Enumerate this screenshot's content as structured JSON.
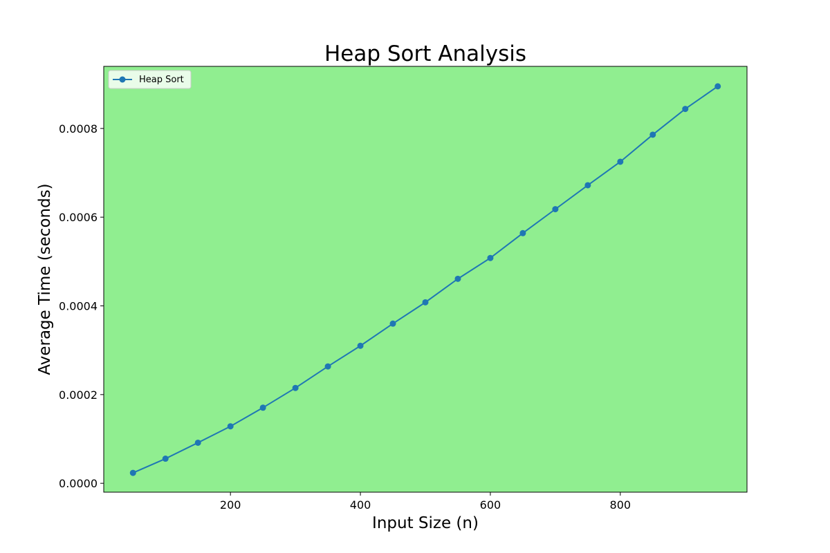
{
  "chart_data": {
    "type": "line",
    "title": "Heap Sort Analysis",
    "xlabel": "Input Size (n)",
    "ylabel": "Average Time (seconds)",
    "xlim": [
      5,
      995
    ],
    "ylim": [
      -2e-05,
      0.00094
    ],
    "xticks": [
      200,
      400,
      600,
      800
    ],
    "yticks": [
      0.0,
      0.0002,
      0.0004,
      0.0006,
      0.0008
    ],
    "xtick_labels": [
      "200",
      "400",
      "600",
      "800"
    ],
    "ytick_labels": [
      "0.0000",
      "0.0002",
      "0.0004",
      "0.0006",
      "0.0008"
    ],
    "grid": false,
    "legend_position": "top-left",
    "background_color": "#90ee90",
    "series": [
      {
        "name": "Heap Sort",
        "color": "#1f77b4",
        "marker": "circle",
        "x": [
          50,
          100,
          150,
          200,
          250,
          300,
          350,
          400,
          450,
          500,
          550,
          600,
          650,
          700,
          750,
          800,
          850,
          900,
          950
        ],
        "y": [
          2.35e-05,
          5.55e-05,
          9.15e-05,
          0.0001285,
          0.0001705,
          0.000215,
          0.0002635,
          0.00031,
          0.00036,
          0.000408,
          0.000461,
          0.000508,
          0.000564,
          0.000618,
          0.000672,
          0.000725,
          0.000786,
          0.000844,
          0.000895
        ]
      }
    ]
  }
}
